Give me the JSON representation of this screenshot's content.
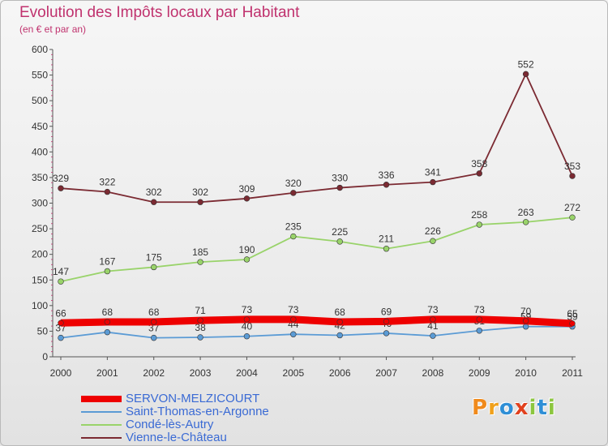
{
  "header": {
    "title": "Evolution des Impôts locaux par Habitant",
    "subtitle": "(en € et par an)"
  },
  "logo": {
    "text": "Proxiti",
    "letters": [
      "P",
      "r",
      "o",
      "x",
      "i",
      "t",
      "i"
    ],
    "colors": [
      "#f08a1c",
      "#f0a11c",
      "#2f8fd6",
      "#e1411e",
      "#8cc63f",
      "#2f8fd6",
      "#8cc63f"
    ]
  },
  "chart_data": {
    "type": "line",
    "x": [
      "2000",
      "2001",
      "2002",
      "2003",
      "2004",
      "2005",
      "2006",
      "2007",
      "2008",
      "2009",
      "2010",
      "2011"
    ],
    "ylim": [
      0,
      600
    ],
    "yticks": [
      "0",
      "50",
      "100",
      "150",
      "200",
      "250",
      "300",
      "350",
      "400",
      "450",
      "500",
      "550",
      "600"
    ],
    "grid": false,
    "legend_position": "bottom-left",
    "series": [
      {
        "name": "SERVON-MELZICOURT",
        "color": "#ee0000",
        "values": [
          66,
          68,
          68,
          71,
          73,
          73,
          68,
          69,
          73,
          73,
          70,
          65
        ],
        "labels": [
          "66",
          "68",
          "68",
          "71",
          "73",
          "73",
          "68",
          "69",
          "73",
          "73",
          "70",
          "65"
        ]
      },
      {
        "name": "Saint-Thomas-en-Argonne",
        "color": "#5b9bd5",
        "values": [
          37,
          48,
          37,
          38,
          40,
          44,
          42,
          46,
          41,
          51,
          59,
          59
        ],
        "labels": [
          "37",
          "48",
          "37",
          "38",
          "40",
          "44",
          "42",
          "46",
          "41",
          "51",
          "59",
          "59"
        ]
      },
      {
        "name": "Condé-lès-Autry",
        "color": "#99d36a",
        "values": [
          147,
          167,
          175,
          185,
          190,
          235,
          225,
          211,
          226,
          258,
          263,
          272
        ],
        "labels": [
          "147",
          "167",
          "175",
          "185",
          "190",
          "235",
          "225",
          "211",
          "226",
          "258",
          "263",
          "272"
        ]
      },
      {
        "name": "Vienne-le-Château",
        "color": "#7b2a32",
        "values": [
          329,
          322,
          302,
          302,
          309,
          320,
          330,
          336,
          341,
          358,
          552,
          353
        ],
        "labels": [
          "329",
          "322",
          "302",
          "302",
          "309",
          "320",
          "330",
          "336",
          "341",
          "358",
          "552",
          "353"
        ]
      }
    ]
  }
}
